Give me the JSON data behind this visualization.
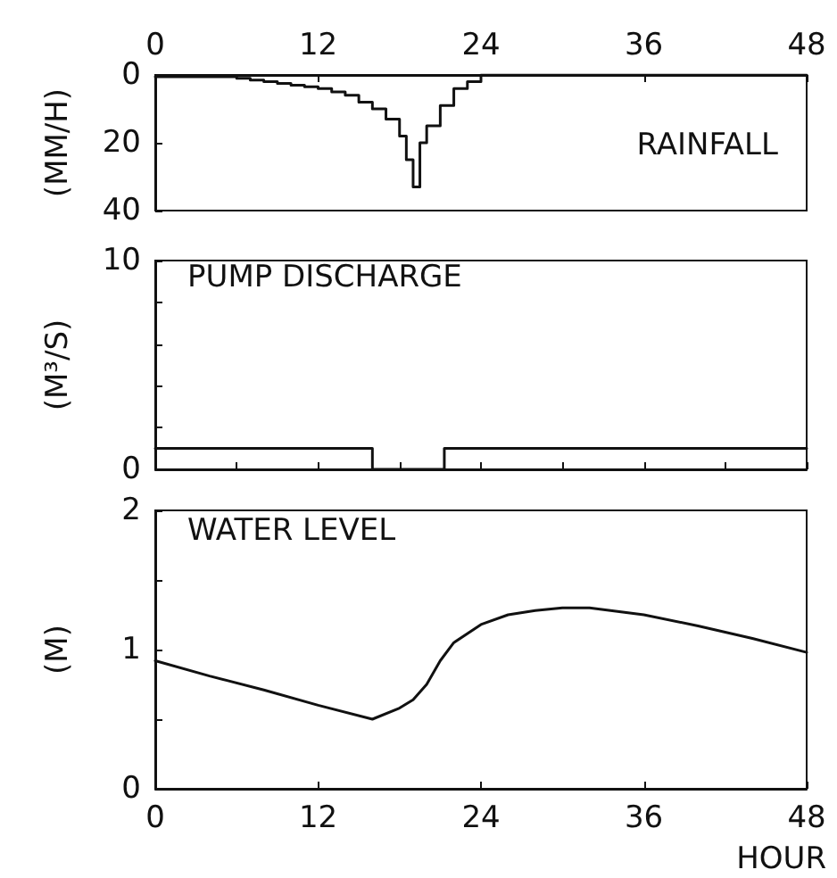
{
  "chart_data": [
    {
      "type": "step",
      "title": "RAINFALL",
      "ylabel": "(MM/H)",
      "x": [
        0,
        1,
        2,
        3,
        4,
        5,
        6,
        7,
        8,
        9,
        10,
        11,
        12,
        13,
        14,
        15,
        16,
        17,
        18,
        18.5,
        19,
        19.5,
        20,
        21,
        22,
        23,
        24,
        48
      ],
      "values": [
        0.5,
        0.5,
        0.5,
        0.5,
        0.5,
        0.5,
        1,
        1.5,
        2,
        2.5,
        3,
        3.5,
        4,
        5,
        6,
        8,
        10,
        13,
        18,
        25,
        33,
        20,
        15,
        9,
        4,
        2,
        0,
        0
      ],
      "color": "#111111",
      "xlim": [
        0,
        48
      ],
      "xticks": [
        0,
        12,
        24,
        36,
        48
      ],
      "ylim": [
        40,
        0
      ],
      "yticks": [
        0,
        20,
        40
      ],
      "grid": false
    },
    {
      "type": "step",
      "title": "PUMP DISCHARGE",
      "ylabel": "(M³/S)",
      "x": [
        0,
        16,
        21.3,
        48
      ],
      "values": [
        1,
        0,
        1,
        1
      ],
      "color": "#111111",
      "xlim": [
        0,
        48
      ],
      "xticks": [
        {
          "value": 0,
          "label": null
        },
        {
          "value": 6,
          "label": null
        },
        {
          "value": 12,
          "label": null
        },
        {
          "value": 18,
          "label": null
        },
        {
          "value": 24,
          "label": null
        },
        {
          "value": 30,
          "label": null
        },
        {
          "value": 36,
          "label": null
        },
        {
          "value": 42,
          "label": null
        },
        {
          "value": 48,
          "label": null
        }
      ],
      "ylim": [
        0,
        10
      ],
      "yticks": [
        0,
        {
          "value": 2,
          "label": null
        },
        {
          "value": 4,
          "label": null
        },
        {
          "value": 6,
          "label": null
        },
        {
          "value": 8,
          "label": null
        },
        10
      ],
      "tick_labels": "y",
      "grid": false
    },
    {
      "type": "line",
      "title": "WATER LEVEL",
      "ylabel": "(M)",
      "xlabel": "HOUR",
      "x": [
        0,
        4,
        8,
        12,
        16,
        18,
        19,
        20,
        21,
        22,
        24,
        26,
        28,
        30,
        32,
        36,
        40,
        44,
        48
      ],
      "values": [
        0.92,
        0.81,
        0.71,
        0.6,
        0.5,
        0.58,
        0.64,
        0.75,
        0.92,
        1.05,
        1.18,
        1.25,
        1.28,
        1.3,
        1.3,
        1.25,
        1.17,
        1.08,
        0.98
      ],
      "color": "#111111",
      "xlim": [
        0,
        48
      ],
      "xticks": [
        0,
        12,
        24,
        36,
        48
      ],
      "ylim": [
        0,
        2
      ],
      "yticks": [
        0,
        {
          "value": 0.5,
          "label": null
        },
        1,
        {
          "value": 1.5,
          "label": null
        },
        2
      ],
      "grid": false
    }
  ]
}
